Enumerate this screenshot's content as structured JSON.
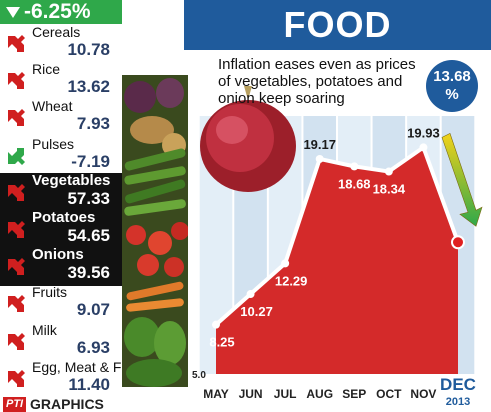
{
  "headline": {
    "change": "-6.25%",
    "direction": "down",
    "color": "#2fa84a"
  },
  "items": [
    {
      "name": "Cereals",
      "value": "10.78",
      "direction": "up",
      "highlight": false
    },
    {
      "name": "Rice",
      "value": "13.62",
      "direction": "up",
      "highlight": false
    },
    {
      "name": "Wheat",
      "value": "7.93",
      "direction": "up",
      "highlight": false
    },
    {
      "name": "Pulses",
      "value": "-7.19",
      "direction": "down",
      "highlight": false
    },
    {
      "name": "Vegetables",
      "value": "57.33",
      "direction": "up",
      "highlight": true
    },
    {
      "name": "Potatoes",
      "value": "54.65",
      "direction": "up",
      "highlight": true
    },
    {
      "name": "Onions",
      "value": "39.56",
      "direction": "up",
      "highlight": true
    },
    {
      "name": "Fruits",
      "value": "9.07",
      "direction": "up",
      "highlight": false
    },
    {
      "name": "Milk",
      "value": "6.93",
      "direction": "up",
      "highlight": false
    },
    {
      "name": "Egg, Meat & Fish",
      "value": "11.40",
      "direction": "up",
      "highlight": false
    }
  ],
  "footer": {
    "agency": "PTI",
    "label": "GRAPHICS"
  },
  "colors": {
    "up_arrow": "#d01f1f",
    "down_arrow": "#2fa84a",
    "area": "#d42a2a",
    "title_band": "#1f5b9c",
    "value_text": "#2a3f66"
  },
  "chart_data": {
    "type": "area",
    "title": "FOOD INFLATION",
    "subtitle": "Inflation eases even as prices of vegetables, potatoes and onion keep soaring",
    "categories": [
      "MAY",
      "JUN",
      "JUL",
      "AUG",
      "SEP",
      "OCT",
      "NOV",
      "DEC"
    ],
    "values": [
      8.25,
      10.27,
      12.29,
      19.17,
      18.68,
      18.34,
      19.93,
      13.68
    ],
    "data_labels": [
      "8.25",
      "10.27",
      "12.29",
      "19.17",
      "18.68",
      "18.34",
      "19.93",
      ""
    ],
    "callout": {
      "value": "13.68",
      "unit": "%"
    },
    "year_label": "2013",
    "ylim": [
      5.0,
      22
    ],
    "y_tick_label": "5.0",
    "grid": true
  }
}
